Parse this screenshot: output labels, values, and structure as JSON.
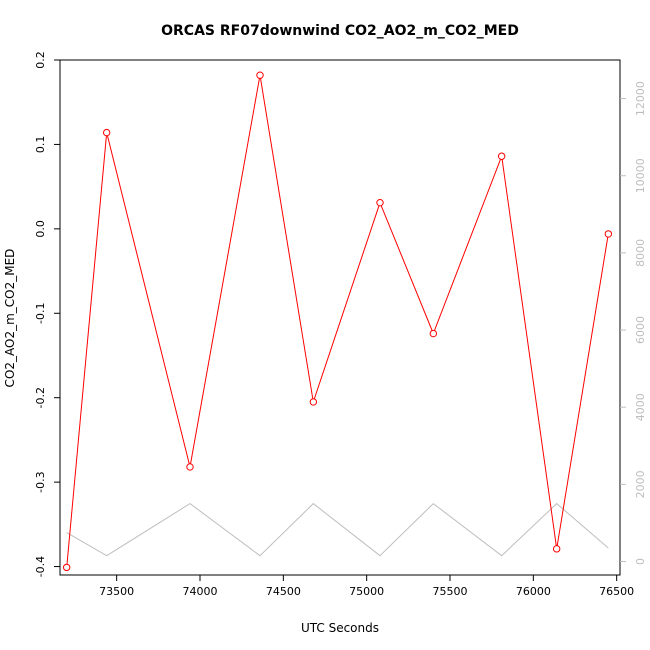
{
  "chart_data": {
    "type": "line",
    "title": "ORCAS RF07downwind CO2_AO2_m_CO2_MED",
    "xlabel": "UTC Seconds",
    "ylabel": "CO2_AO2_m_CO2_MED",
    "xlim": [
      73160,
      76520
    ],
    "ylim": [
      -0.41,
      0.2
    ],
    "y2lim": [
      -350,
      13000
    ],
    "x_ticks": [
      73500,
      74000,
      74500,
      75000,
      75500,
      76000,
      76500
    ],
    "y_ticks": [
      -0.4,
      -0.3,
      -0.2,
      -0.1,
      0.0,
      0.1,
      0.2
    ],
    "y_tick_labels": [
      "-0.4",
      "-0.3",
      "-0.2",
      "-0.1",
      "0.0",
      "0.1",
      "0.2"
    ],
    "y2_ticks": [
      0,
      2000,
      4000,
      6000,
      8000,
      10000,
      12000
    ],
    "grid": false,
    "series": [
      {
        "color": "#ff0000",
        "marker": "circle",
        "axis": "left",
        "x": [
          73200,
          73440,
          73940,
          74360,
          74680,
          75080,
          75400,
          75810,
          76140,
          76450
        ],
        "y": [
          -0.401,
          0.114,
          -0.282,
          0.182,
          -0.205,
          0.031,
          -0.124,
          0.086,
          -0.379,
          -0.006
        ]
      },
      {
        "color": "#bebebe",
        "axis": "right",
        "x": [
          73200,
          73440,
          73940,
          74360,
          74680,
          75080,
          75400,
          75810,
          76140,
          76450
        ],
        "y": [
          750,
          150,
          1500,
          150,
          1500,
          150,
          1500,
          150,
          1500,
          350
        ]
      }
    ]
  }
}
